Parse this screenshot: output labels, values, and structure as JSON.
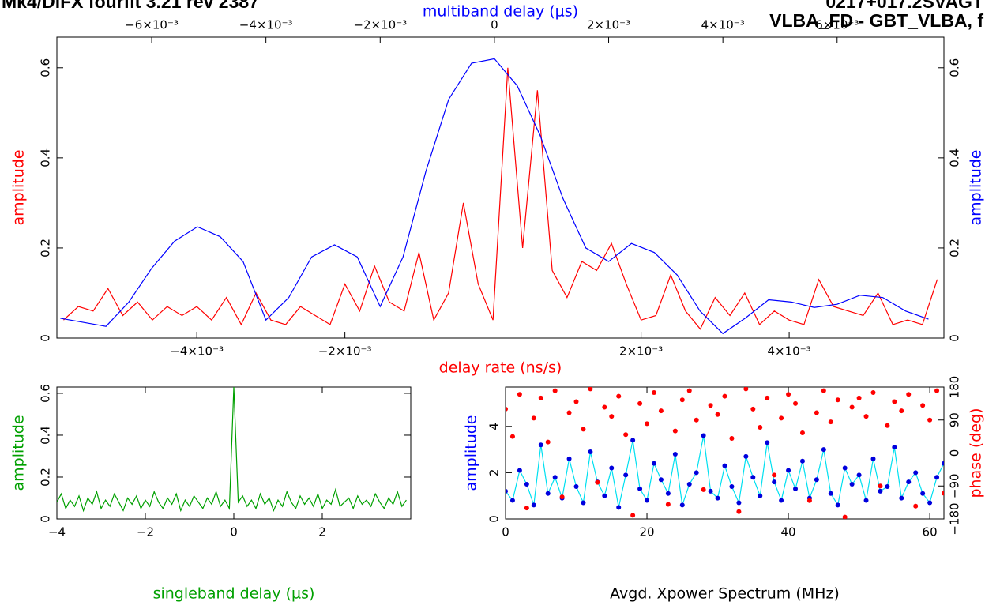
{
  "header": {
    "left": "Mk4/DiFX fourfit 3.21 rev 2387",
    "right_1": "0217+017.2SVAGT",
    "right_2": "VLBA_FD - GBT_VLBA, f"
  },
  "chart_data": [
    {
      "type": "line",
      "x_label": "delay rate (ns/s)",
      "x_label_color": "#ff0000",
      "x2_label": "multiband delay (µs)",
      "x2_label_color": "#0000ff",
      "y_label": "amplitude",
      "y_label_color": "#ff0000",
      "y2_label": "amplitude",
      "y2_label_color": "#0000ff",
      "xlim": [
        -0.00589,
        0.00609
      ],
      "xticks": [
        {
          "value": -0.004,
          "label": "−4×10⁻³"
        },
        {
          "value": -0.002,
          "label": "−2×10⁻³"
        },
        {
          "value": 0.002,
          "label": "2×10⁻³"
        },
        {
          "value": 0.004,
          "label": "4×10⁻³"
        }
      ],
      "x2lim": [
        -0.00766,
        0.00787
      ],
      "x2ticks": [
        {
          "value": -0.006,
          "label": "−6×10⁻³"
        },
        {
          "value": -0.004,
          "label": "−4×10⁻³"
        },
        {
          "value": -0.002,
          "label": "−2×10⁻³"
        },
        0,
        {
          "value": 0.002,
          "label": "2×10⁻³"
        },
        {
          "value": 0.004,
          "label": "4×10⁻³"
        },
        {
          "value": 0.006,
          "label": "6×10⁻³"
        }
      ],
      "ylim": [
        0,
        0.668
      ],
      "yticks": [
        0,
        0.2,
        0.4,
        0.6
      ],
      "y2lim": [
        0,
        0.668
      ],
      "y2ticks": [
        0,
        0.2,
        0.4,
        0.6
      ],
      "series": [
        {
          "color": "#ff0000",
          "x": [
            -0.0058,
            -0.0056,
            -0.0054,
            -0.0052,
            -0.005,
            -0.0048,
            -0.0046,
            -0.0044,
            -0.0042,
            -0.004,
            -0.0038,
            -0.0036,
            -0.0034,
            -0.0032,
            -0.003,
            -0.0028,
            -0.0026,
            -0.0024,
            -0.0022,
            -0.002,
            -0.0018,
            -0.0016,
            -0.0014,
            -0.0012,
            -0.001,
            -0.0008,
            -0.0006,
            -0.0004,
            -0.0002,
            0,
            0.0002,
            0.0004,
            0.0006,
            0.0008,
            0.001,
            0.0012,
            0.0014,
            0.0016,
            0.0018,
            0.002,
            0.0022,
            0.0024,
            0.0026,
            0.0028,
            0.003,
            0.0032,
            0.0034,
            0.0036,
            0.0038,
            0.004,
            0.0042,
            0.0044,
            0.0046,
            0.0048,
            0.005,
            0.0052,
            0.0054,
            0.0056,
            0.0058,
            0.006
          ],
          "values": [
            0.04,
            0.07,
            0.06,
            0.11,
            0.05,
            0.08,
            0.04,
            0.07,
            0.05,
            0.07,
            0.04,
            0.09,
            0.03,
            0.1,
            0.04,
            0.03,
            0.07,
            0.05,
            0.03,
            0.12,
            0.06,
            0.16,
            0.08,
            0.06,
            0.19,
            0.04,
            0.1,
            0.3,
            0.12,
            0.04,
            0.6,
            0.2,
            0.55,
            0.15,
            0.09,
            0.17,
            0.15,
            0.21,
            0.12,
            0.04,
            0.05,
            0.14,
            0.06,
            0.02,
            0.09,
            0.05,
            0.1,
            0.03,
            0.06,
            0.04,
            0.03,
            0.13,
            0.07,
            0.06,
            0.05,
            0.1,
            0.03,
            0.04,
            0.03,
            0.13
          ]
        },
        {
          "color": "#0000ff",
          "axis": "x2",
          "x": [
            -0.0076,
            -0.0072,
            -0.0068,
            -0.0064,
            -0.006,
            -0.0056,
            -0.0052,
            -0.0048,
            -0.0044,
            -0.004,
            -0.0036,
            -0.0032,
            -0.0028,
            -0.0024,
            -0.002,
            -0.0016,
            -0.0012,
            -0.0008,
            -0.0004,
            0,
            0.0004,
            0.0008,
            0.0012,
            0.0016,
            0.002,
            0.0024,
            0.0028,
            0.0032,
            0.0036,
            0.004,
            0.0044,
            0.0048,
            0.0052,
            0.0056,
            0.006,
            0.0064,
            0.0068,
            0.0072,
            0.0076
          ],
          "values": [
            0.044,
            0.035,
            0.026,
            0.08,
            0.155,
            0.215,
            0.247,
            0.225,
            0.17,
            0.04,
            0.09,
            0.18,
            0.207,
            0.18,
            0.07,
            0.18,
            0.37,
            0.53,
            0.61,
            0.62,
            0.56,
            0.45,
            0.31,
            0.2,
            0.17,
            0.21,
            0.19,
            0.14,
            0.06,
            0.01,
            0.045,
            0.085,
            0.08,
            0.068,
            0.075,
            0.095,
            0.09,
            0.06,
            0.042
          ]
        }
      ]
    },
    {
      "type": "line",
      "x_label": "singleband delay (µs)",
      "x_label_color": "#00a000",
      "y_label": "amplitude",
      "y_label_color": "#00a000",
      "xlim": [
        -4,
        4
      ],
      "xticks": [
        {
          "value": -4,
          "label": "−4"
        },
        {
          "value": -2,
          "label": "−2"
        },
        0,
        2
      ],
      "ylim": [
        0,
        0.63
      ],
      "yticks": [
        0,
        0.2,
        0.4,
        0.6
      ],
      "series": [
        {
          "color": "#00a000",
          "x": [
            -4,
            -3.9,
            -3.8,
            -3.7,
            -3.6,
            -3.5,
            -3.4,
            -3.3,
            -3.2,
            -3.1,
            -3,
            -2.9,
            -2.8,
            -2.7,
            -2.6,
            -2.5,
            -2.4,
            -2.3,
            -2.2,
            -2.1,
            -2,
            -1.9,
            -1.8,
            -1.7,
            -1.6,
            -1.5,
            -1.4,
            -1.3,
            -1.2,
            -1.1,
            -1,
            -0.9,
            -0.8,
            -0.7,
            -0.6,
            -0.5,
            -0.4,
            -0.3,
            -0.2,
            -0.1,
            0,
            0.1,
            0.2,
            0.3,
            0.4,
            0.5,
            0.6,
            0.7,
            0.8,
            0.9,
            1,
            1.1,
            1.2,
            1.3,
            1.4,
            1.5,
            1.6,
            1.7,
            1.8,
            1.9,
            2,
            2.1,
            2.2,
            2.3,
            2.4,
            2.5,
            2.6,
            2.7,
            2.8,
            2.9,
            3,
            3.1,
            3.2,
            3.3,
            3.4,
            3.5,
            3.6,
            3.7,
            3.8,
            3.9
          ],
          "values": [
            0.08,
            0.12,
            0.05,
            0.09,
            0.06,
            0.11,
            0.04,
            0.1,
            0.07,
            0.13,
            0.05,
            0.09,
            0.06,
            0.12,
            0.08,
            0.04,
            0.1,
            0.07,
            0.11,
            0.05,
            0.09,
            0.06,
            0.13,
            0.08,
            0.05,
            0.1,
            0.07,
            0.12,
            0.04,
            0.09,
            0.06,
            0.11,
            0.08,
            0.05,
            0.1,
            0.07,
            0.13,
            0.06,
            0.09,
            0.05,
            0.63,
            0.08,
            0.11,
            0.06,
            0.09,
            0.05,
            0.12,
            0.07,
            0.1,
            0.04,
            0.09,
            0.06,
            0.13,
            0.08,
            0.05,
            0.11,
            0.07,
            0.1,
            0.06,
            0.12,
            0.05,
            0.09,
            0.07,
            0.14,
            0.06,
            0.08,
            0.1,
            0.05,
            0.11,
            0.07,
            0.09,
            0.06,
            0.12,
            0.08,
            0.05,
            0.1,
            0.07,
            0.13,
            0.06,
            0.09
          ]
        }
      ]
    },
    {
      "type": "scatter",
      "x_label": "Avgd. Xpower Spectrum (MHz)",
      "x_label_color": "#000000",
      "y_label": "amplitude",
      "y_label_color": "#0000ff",
      "y2_label": "phase (deg)",
      "y2_label_color": "#ff0000",
      "xlim": [
        0,
        62
      ],
      "xticks": [
        0,
        20,
        40,
        60
      ],
      "ylim": [
        0,
        5.7
      ],
      "yticks": [
        0,
        2,
        4
      ],
      "y2lim": [
        -180,
        180
      ],
      "y2ticks": [
        {
          "value": -180,
          "label": "−180"
        },
        {
          "value": -90,
          "label": "−90"
        },
        0,
        90,
        180
      ],
      "x": [
        0,
        1,
        2,
        3,
        4,
        5,
        6,
        7,
        8,
        9,
        10,
        11,
        12,
        13,
        14,
        15,
        16,
        17,
        18,
        19,
        20,
        21,
        22,
        23,
        24,
        25,
        26,
        27,
        28,
        29,
        30,
        31,
        32,
        33,
        34,
        35,
        36,
        37,
        38,
        39,
        40,
        41,
        42,
        43,
        44,
        45,
        46,
        47,
        48,
        49,
        50,
        51,
        52,
        53,
        54,
        55,
        56,
        57,
        58,
        59,
        60,
        61,
        62
      ],
      "series": [
        {
          "color": "#0000dd",
          "line_color": "#00e0f0",
          "values": [
            1.2,
            0.8,
            2.1,
            1.5,
            0.6,
            3.2,
            1.1,
            1.8,
            0.9,
            2.6,
            1.4,
            0.7,
            2.9,
            1.6,
            1.0,
            2.2,
            0.5,
            1.9,
            3.4,
            1.3,
            0.8,
            2.4,
            1.7,
            1.1,
            2.8,
            0.6,
            1.5,
            2.0,
            3.6,
            1.2,
            0.9,
            2.3,
            1.4,
            0.7,
            2.7,
            1.8,
            1.0,
            3.3,
            1.6,
            0.8,
            2.1,
            1.3,
            2.5,
            0.9,
            1.7,
            3.0,
            1.1,
            0.6,
            2.2,
            1.5,
            1.9,
            0.8,
            2.6,
            1.2,
            1.4,
            3.1,
            0.9,
            1.6,
            2.0,
            1.1,
            0.7,
            1.8,
            2.4
          ]
        },
        {
          "color": "#ff0000",
          "axis": "y2",
          "values": [
            120,
            45,
            160,
            -150,
            95,
            150,
            30,
            170,
            -120,
            110,
            140,
            65,
            175,
            -80,
            125,
            100,
            155,
            50,
            -170,
            135,
            80,
            165,
            115,
            -140,
            60,
            145,
            170,
            90,
            -100,
            130,
            105,
            155,
            40,
            -160,
            175,
            120,
            70,
            150,
            -60,
            95,
            160,
            135,
            55,
            -130,
            110,
            170,
            85,
            145,
            -175,
            125,
            150,
            100,
            165,
            -90,
            75,
            140,
            115,
            160,
            -145,
            130,
            90,
            170,
            -110
          ]
        }
      ]
    }
  ]
}
